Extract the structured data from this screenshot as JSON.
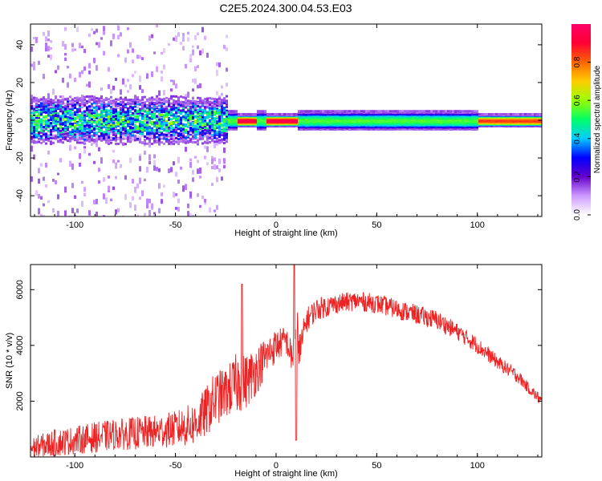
{
  "title": "C2E5.2024.300.04.53.E03",
  "colors": {
    "snr_line": "#ee2222",
    "axis": "#000000"
  },
  "chart_data": [
    {
      "type": "heatmap",
      "xlabel": "Height of straight line (km)",
      "ylabel": "Frequency (Hz)",
      "xlim": [
        -122,
        132
      ],
      "ylim": [
        -51,
        51
      ],
      "xticks": [
        -100,
        -50,
        0,
        50,
        100
      ],
      "yticks": [
        -40,
        -20,
        0,
        20,
        40
      ],
      "colorbar": {
        "label": "Normalized spectral amplitude",
        "range": [
          0.0,
          1.0
        ],
        "ticks": [
          "0.0",
          "0.2",
          "0.4",
          "0.6",
          "0.8"
        ],
        "colormap": [
          "#ffffff",
          "#cc99ff",
          "#6600cc",
          "#0000ff",
          "#00ccff",
          "#00ff66",
          "#99ff00",
          "#ffcc00",
          "#ff6600",
          "#ff0033",
          "#ff0066"
        ]
      },
      "features": [
        {
          "x_range": [
            -122,
            -25
          ],
          "center_freq": 0,
          "band_halfwidth_hz": 7,
          "amplitude": 0.45,
          "description": "noisy broad band"
        },
        {
          "x_range": [
            -25,
            132
          ],
          "center_freq": 0,
          "band_halfwidth_hz": 3,
          "amplitude": 0.55
        },
        {
          "x_range": [
            -20,
            -10
          ],
          "center_freq": 0,
          "band_halfwidth_hz": 2,
          "amplitude": 0.95
        },
        {
          "x_range": [
            -5,
            10
          ],
          "center_freq": 0,
          "band_halfwidth_hz": 2,
          "amplitude": 0.95
        },
        {
          "x_range": [
            100,
            132
          ],
          "center_freq": 0,
          "band_halfwidth_hz": 2,
          "amplitude": 0.85
        }
      ]
    },
    {
      "type": "line",
      "xlabel": "Height of straight line (km)",
      "ylabel": "SNR (10 * v/v)",
      "xlim": [
        -122,
        132
      ],
      "ylim": [
        0,
        6900
      ],
      "xticks": [
        -100,
        -50,
        0,
        50,
        100
      ],
      "yticks": [
        2000,
        4000,
        6000
      ],
      "series": [
        {
          "x": [
            -122,
            -110,
            -100,
            -90,
            -80,
            -70,
            -60,
            -50,
            -40,
            -35,
            -30,
            -25,
            -20,
            -15,
            -10,
            -5,
            0,
            5,
            8,
            10,
            12,
            15,
            20,
            25,
            30,
            40,
            50,
            60,
            70,
            80,
            90,
            100,
            110,
            120,
            125,
            132
          ],
          "y": [
            300,
            500,
            600,
            700,
            800,
            850,
            900,
            1000,
            1200,
            1600,
            2100,
            2300,
            2600,
            2700,
            3100,
            3600,
            4000,
            4200,
            3500,
            4700,
            3800,
            4900,
            5300,
            5400,
            5500,
            5600,
            5500,
            5300,
            5100,
            4900,
            4500,
            4000,
            3400,
            2900,
            2500,
            2000
          ],
          "noise": [
            400,
            500,
            500,
            550,
            550,
            600,
            600,
            650,
            800,
            900,
            1000,
            900,
            1100,
            1000,
            900,
            700,
            600,
            500,
            600,
            900,
            700,
            450,
            400,
            400,
            350,
            350,
            350,
            350,
            350,
            350,
            300,
            300,
            250,
            250,
            200,
            200
          ]
        }
      ],
      "annotations": [
        {
          "x": -17,
          "y": 6200,
          "description": "spike"
        },
        {
          "x": 9,
          "y": 6900,
          "description": "spike"
        },
        {
          "x": 10,
          "y": 600,
          "description": "dip"
        }
      ]
    }
  ]
}
